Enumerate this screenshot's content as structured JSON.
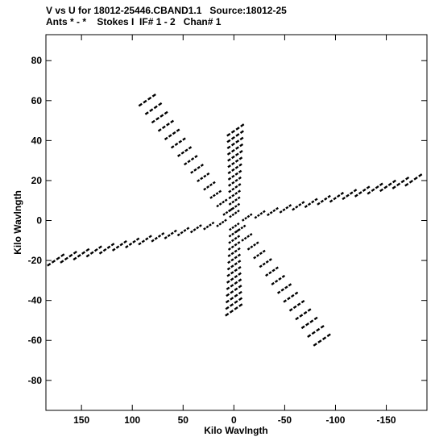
{
  "header": {
    "line1": "V vs U for 18012-25446.CBAND1.1   Source:18012-25",
    "line2": "Ants * - *    Stokes I  IF# 1 - 2   Chan# 1"
  },
  "chart_data": {
    "type": "scatter",
    "title": "V vs U for 18012-25446.CBAND1.1   Source:18012-25",
    "subtitle": "Ants * - *    Stokes I  IF# 1 - 2   Chan# 1",
    "xlabel": "Kilo Wavlngth",
    "ylabel": "Kilo Wavlngth",
    "xlim": [
      185,
      -190
    ],
    "ylim": [
      -95,
      93
    ],
    "xticks": [
      150,
      100,
      50,
      0,
      -50,
      -100,
      -150
    ],
    "xtick_labels": [
      "150",
      "100",
      "50",
      "0",
      "-50",
      "-100",
      "-150"
    ],
    "yticks": [
      -80,
      -60,
      -40,
      -20,
      0,
      20,
      40,
      60,
      80
    ],
    "ytick_labels": [
      "-80",
      "-60",
      "-40",
      "-20",
      "0",
      "20",
      "40",
      "60",
      "80"
    ],
    "grid": false,
    "marker_color": "#000000",
    "arms": [
      {
        "name": "arm-upper-left",
        "uv": [
          -0.8,
          45
        ],
        "count": 14
      },
      {
        "name": "arm-left",
        "uv": [
          -176,
          20
        ],
        "count": 14
      },
      {
        "name": "arm-lower-left",
        "uv": [
          -86,
          -60
        ],
        "count": 14
      },
      {
        "name": "arm-upper-right",
        "uv": [
          86,
          60
        ],
        "count": 14
      },
      {
        "name": "arm-right",
        "uv": [
          176,
          -20
        ],
        "count": 14
      },
      {
        "name": "arm-lower-right",
        "uv": [
          0.8,
          -45
        ],
        "count": 14
      }
    ],
    "track_u_span": 18,
    "track_v_slope": -0.35
  }
}
